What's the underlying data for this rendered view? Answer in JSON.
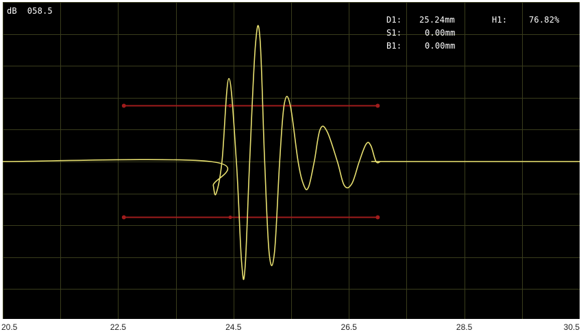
{
  "hud": {
    "db_label": "dB",
    "db_value": "058.5",
    "readouts": [
      {
        "label": "D1:",
        "value": "25.24mm"
      },
      {
        "label": "S1:",
        "value": "0.00mm"
      },
      {
        "label": "B1:",
        "value": "0.00mm"
      }
    ],
    "h1_label": "H1:",
    "h1_value": "76.82%"
  },
  "colors": {
    "background": "#000000",
    "grid": "#3a3d1c",
    "waveform": "#e8e070",
    "gate": "#a01c1c"
  },
  "chart_data": {
    "type": "line",
    "title": "",
    "xlabel": "",
    "ylabel": "",
    "xlim": [
      20.5,
      30.5
    ],
    "ylim": [
      -100,
      100
    ],
    "x_ticks": [
      "20.5",
      "22.5",
      "24.5",
      "26.5",
      "28.5",
      "30.5"
    ],
    "grid": true,
    "x_divisions": 10,
    "y_divisions": 10,
    "series": [
      {
        "x": [
          20.5,
          24.1,
          24.15,
          24.2,
          24.3,
          24.42,
          24.55,
          24.64,
          24.7,
          24.78,
          24.88,
          24.96,
          25.04,
          25.12,
          25.21,
          25.3,
          25.38,
          25.48,
          25.62,
          25.72,
          25.8,
          25.9,
          26.0,
          26.12,
          26.3,
          26.42,
          26.55,
          26.68,
          26.8,
          26.88,
          26.97,
          27.05,
          27.11,
          27.18,
          30.5
        ],
        "y": [
          0,
          0,
          -15,
          -20,
          0,
          52,
          0,
          -63,
          -67,
          0,
          73,
          77,
          0,
          -58,
          -57,
          0,
          36,
          36,
          0,
          -15,
          -16,
          0,
          20,
          19,
          0,
          -15,
          -14,
          0,
          11,
          10,
          0,
          0,
          0,
          0,
          0
        ]
      }
    ],
    "gates": [
      {
        "x_start": 22.6,
        "x_end": 27.0,
        "y": 35
      },
      {
        "x_start": 22.6,
        "x_end": 27.0,
        "y": -35
      }
    ]
  }
}
